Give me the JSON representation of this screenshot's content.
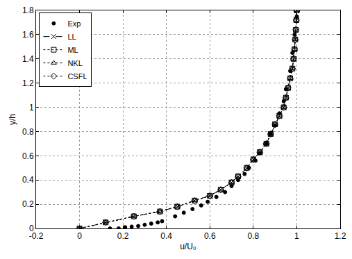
{
  "chart_data": {
    "type": "line",
    "x_label": "u/U₀",
    "y_label": "y/h",
    "xlim": [
      -0.2,
      1.2
    ],
    "xticks": [
      -0.2,
      0,
      0.2,
      0.4,
      0.6,
      0.8,
      1,
      1.2
    ],
    "ylim": [
      0,
      1.8
    ],
    "yticks": [
      0,
      0.2,
      0.4,
      0.6,
      0.8,
      1,
      1.2,
      1.4,
      1.6,
      1.8
    ],
    "grid": true,
    "legend": "upper left",
    "series": [
      {
        "name": "Exp",
        "color": "#000000",
        "marker": "circle",
        "line_style": "none",
        "x": [
          0.14,
          0.18,
          0.21,
          0.24,
          0.27,
          0.3,
          0.33,
          0.36,
          0.38,
          0.44,
          0.48,
          0.52,
          0.56,
          0.59,
          0.63,
          0.67,
          0.7,
          0.73,
          0.76,
          0.78,
          0.81,
          0.83,
          0.86,
          0.88,
          0.9,
          0.92,
          0.94,
          0.95,
          0.97,
          0.98,
          0.99,
          1.0
        ],
        "values": [
          0.0,
          0.0,
          0.01,
          0.015,
          0.02,
          0.03,
          0.04,
          0.05,
          0.06,
          0.1,
          0.13,
          0.16,
          0.19,
          0.22,
          0.26,
          0.3,
          0.35,
          0.4,
          0.45,
          0.5,
          0.56,
          0.62,
          0.7,
          0.78,
          0.85,
          0.95,
          1.05,
          1.15,
          1.3,
          1.45,
          1.6,
          1.75
        ]
      },
      {
        "name": "LL",
        "color": "#000000",
        "marker": "x",
        "line_style": "dashed",
        "x": [
          0,
          0.12,
          0.25,
          0.37,
          0.45,
          0.53,
          0.6,
          0.65,
          0.7,
          0.73,
          0.77,
          0.8,
          0.83,
          0.86,
          0.88,
          0.9,
          0.92,
          0.94,
          0.95,
          0.96,
          0.97,
          0.98,
          0.985,
          0.99,
          0.993,
          0.996,
          0.998,
          1.0
        ],
        "values": [
          0,
          0.05,
          0.1,
          0.14,
          0.18,
          0.23,
          0.27,
          0.32,
          0.38,
          0.43,
          0.5,
          0.57,
          0.63,
          0.7,
          0.78,
          0.86,
          0.93,
          1.0,
          1.08,
          1.16,
          1.24,
          1.32,
          1.4,
          1.48,
          1.56,
          1.64,
          1.72,
          1.8
        ]
      },
      {
        "name": "ML",
        "color": "#000000",
        "marker": "square",
        "line_style": "dotted",
        "x": [
          0,
          0.12,
          0.25,
          0.37,
          0.45,
          0.53,
          0.6,
          0.65,
          0.7,
          0.73,
          0.77,
          0.8,
          0.83,
          0.86,
          0.88,
          0.9,
          0.92,
          0.94,
          0.95,
          0.96,
          0.97,
          0.98,
          0.985,
          0.99,
          0.993,
          0.996,
          0.998,
          1.0
        ],
        "values": [
          0,
          0.05,
          0.1,
          0.14,
          0.18,
          0.23,
          0.27,
          0.32,
          0.38,
          0.43,
          0.5,
          0.57,
          0.63,
          0.7,
          0.78,
          0.86,
          0.93,
          1.0,
          1.08,
          1.16,
          1.24,
          1.32,
          1.4,
          1.48,
          1.56,
          1.64,
          1.72,
          1.8
        ]
      },
      {
        "name": "NKL",
        "color": "#000000",
        "marker": "triangle",
        "line_style": "dotted",
        "x": [
          0,
          0.12,
          0.25,
          0.37,
          0.45,
          0.53,
          0.6,
          0.65,
          0.7,
          0.73,
          0.77,
          0.8,
          0.83,
          0.86,
          0.88,
          0.9,
          0.92,
          0.94,
          0.95,
          0.96,
          0.97,
          0.98,
          0.985,
          0.99,
          0.993,
          0.996,
          0.998,
          1.0
        ],
        "values": [
          0,
          0.05,
          0.1,
          0.14,
          0.18,
          0.23,
          0.27,
          0.32,
          0.38,
          0.43,
          0.5,
          0.57,
          0.63,
          0.7,
          0.78,
          0.86,
          0.93,
          1.0,
          1.08,
          1.16,
          1.24,
          1.32,
          1.4,
          1.48,
          1.56,
          1.64,
          1.72,
          1.8
        ]
      },
      {
        "name": "CSFL",
        "color": "#000000",
        "marker": "diamond",
        "line_style": "dotted",
        "x": [
          0,
          0.12,
          0.25,
          0.37,
          0.45,
          0.53,
          0.6,
          0.65,
          0.7,
          0.73,
          0.77,
          0.8,
          0.83,
          0.86,
          0.88,
          0.9,
          0.92,
          0.94,
          0.95,
          0.96,
          0.97,
          0.98,
          0.985,
          0.99,
          0.993,
          0.996,
          0.998,
          1.0
        ],
        "values": [
          0,
          0.05,
          0.1,
          0.14,
          0.18,
          0.23,
          0.27,
          0.32,
          0.38,
          0.43,
          0.5,
          0.57,
          0.63,
          0.7,
          0.78,
          0.86,
          0.93,
          1.0,
          1.08,
          1.16,
          1.24,
          1.32,
          1.4,
          1.48,
          1.56,
          1.64,
          1.72,
          1.8
        ]
      }
    ]
  }
}
